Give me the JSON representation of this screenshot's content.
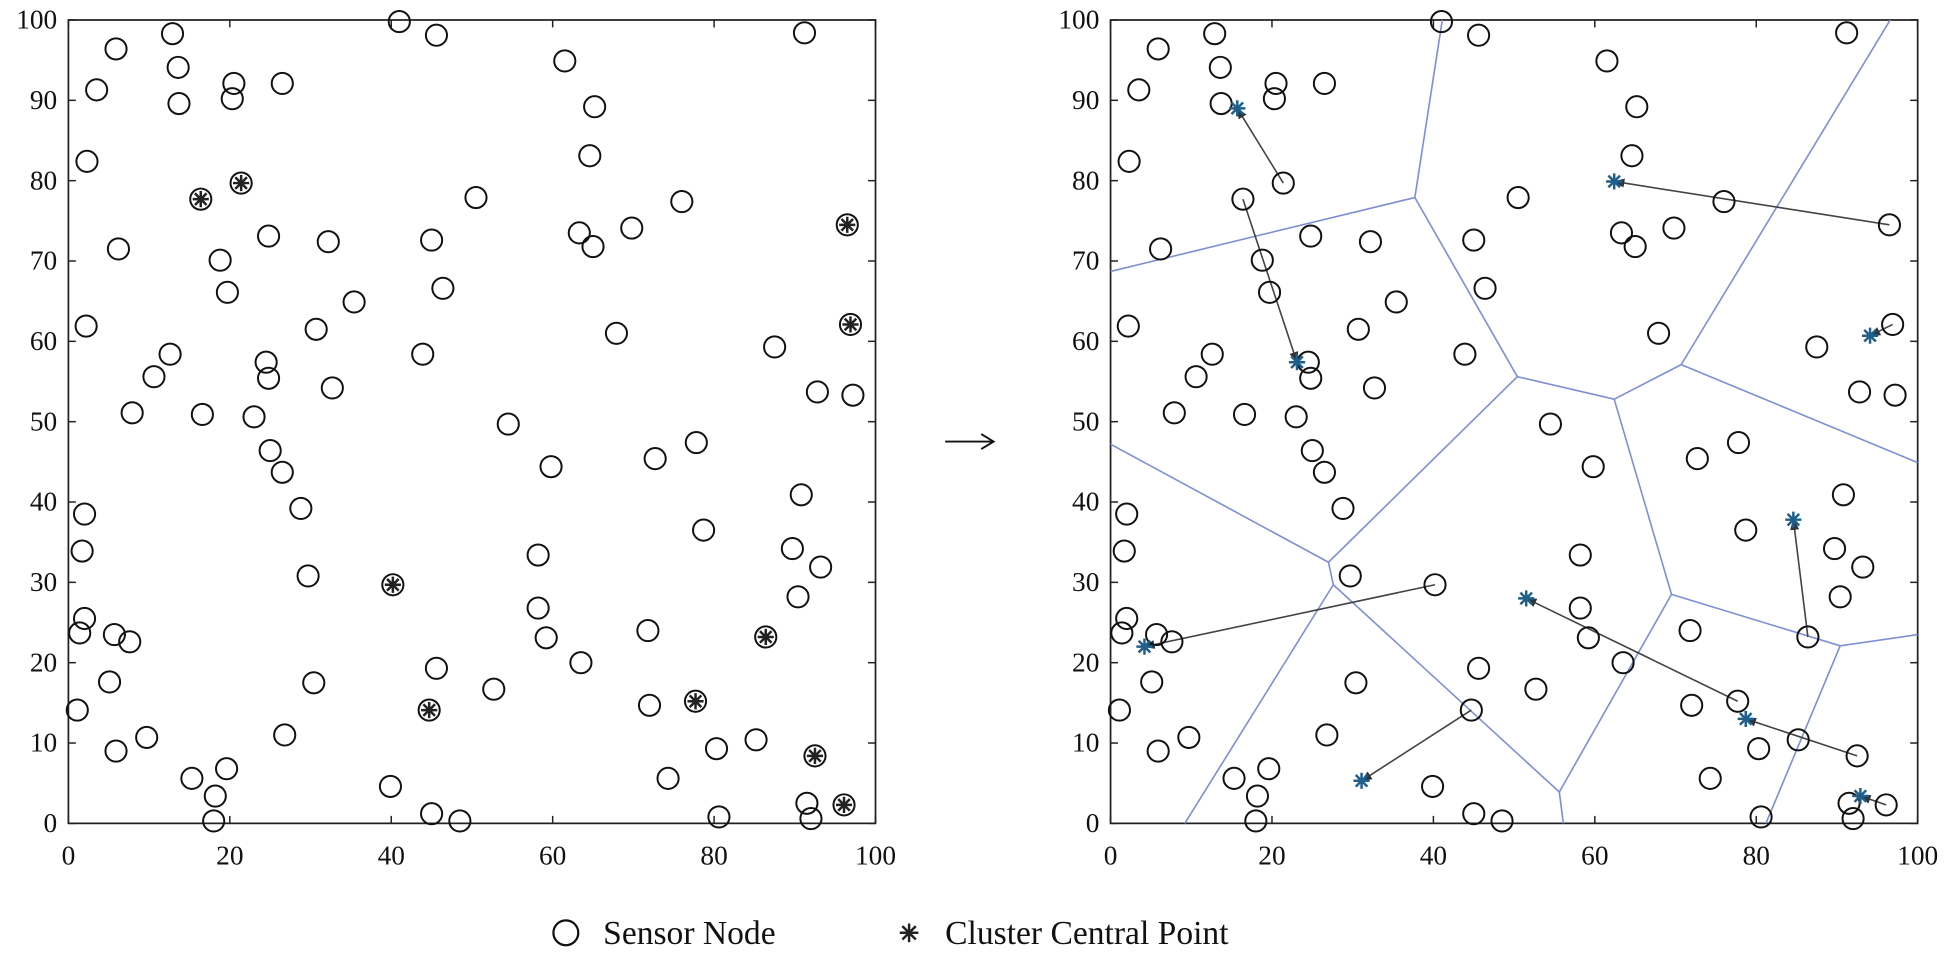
{
  "chart_data": [
    {
      "type": "scatter",
      "xlim": [
        0,
        100
      ],
      "ylim": [
        0,
        100
      ],
      "xticks": [
        0,
        20,
        40,
        60,
        80,
        100
      ],
      "yticks": [
        0,
        10,
        20,
        30,
        40,
        50,
        60,
        70,
        80,
        90,
        100
      ],
      "grid": false,
      "series": [
        {
          "name": "Sensor Node",
          "marker": "circle",
          "color": "#111111",
          "x": [
            12.9,
            41,
            45.6,
            91.2,
            5.9,
            3.5,
            13.6,
            13.7,
            20.5,
            20.3,
            26.5,
            61.5,
            65.2,
            64.6,
            2.3,
            50.5,
            76,
            63.3,
            65,
            69.8,
            24.8,
            32.2,
            45,
            6.2,
            18.8,
            19.7,
            46.4,
            35.4,
            2.2,
            30.7,
            67.9,
            12.6,
            43.9,
            87.5,
            10.6,
            24.5,
            24.8,
            32.7,
            92.8,
            97.2,
            7.9,
            16.6,
            23,
            54.5,
            25,
            26.5,
            59.8,
            72.7,
            77.8,
            28.8,
            2,
            90.8,
            78.7,
            1.7,
            89.7,
            58.2,
            93.2,
            29.7,
            2,
            58.2,
            90.4,
            1.4,
            5.7,
            7.6,
            59.2,
            71.8,
            5.1,
            30.4,
            45.6,
            52.7,
            63.5,
            1.1,
            72,
            9.7,
            26.8,
            5.9,
            80.3,
            85.2,
            74.3,
            15.3,
            19.6,
            18.2,
            18,
            39.9,
            45,
            48.5,
            80.6,
            91.5,
            92,
            16.4,
            21.4,
            96.5,
            96.9,
            40.2,
            86.4,
            77.7,
            44.7,
            92.5,
            96.1
          ],
          "values": [
            98.3,
            99.8,
            98.1,
            98.4,
            96.4,
            91.3,
            94.1,
            89.6,
            92.1,
            90.2,
            92.1,
            94.9,
            89.2,
            83.1,
            82.4,
            77.9,
            77.4,
            73.5,
            71.8,
            74.1,
            73.1,
            72.4,
            72.6,
            71.5,
            70.1,
            66.1,
            66.6,
            64.9,
            61.9,
            61.5,
            61,
            58.4,
            58.4,
            59.3,
            55.6,
            57.4,
            55.4,
            54.2,
            53.7,
            53.3,
            51.1,
            50.9,
            50.6,
            49.7,
            46.4,
            43.7,
            44.4,
            45.4,
            47.4,
            39.2,
            38.5,
            40.9,
            36.5,
            33.9,
            34.2,
            33.4,
            31.9,
            30.8,
            25.5,
            26.8,
            28.2,
            23.7,
            23.5,
            22.6,
            23.1,
            24,
            17.6,
            17.5,
            19.3,
            16.7,
            20,
            14.1,
            14.7,
            10.7,
            11,
            9,
            9.3,
            10.4,
            5.6,
            5.6,
            6.8,
            3.4,
            0.3,
            4.6,
            1.2,
            0.3,
            0.8,
            2.5,
            0.6,
            77.7,
            79.7,
            74.5,
            62.1,
            29.7,
            23.2,
            15.2,
            14.1,
            8.4,
            2.3
          ]
        },
        {
          "name": "Cluster Central Point",
          "marker": "asterisk",
          "color": "#222222",
          "x": [
            16.4,
            21.4,
            96.5,
            96.9,
            40.2,
            86.4,
            77.7,
            44.7,
            92.5,
            96.1
          ],
          "values": [
            77.7,
            79.7,
            74.5,
            62.1,
            29.7,
            23.2,
            15.2,
            14.1,
            8.4,
            2.3
          ]
        }
      ]
    },
    {
      "type": "scatter",
      "xlim": [
        0,
        100
      ],
      "ylim": [
        0,
        100
      ],
      "xticks": [
        0,
        20,
        40,
        60,
        80,
        100
      ],
      "yticks": [
        0,
        10,
        20,
        30,
        40,
        50,
        60,
        70,
        80,
        90,
        100
      ],
      "grid": false,
      "series": [
        {
          "marker": "circle",
          "color": "#111111",
          "x": [
            12.9,
            41,
            45.6,
            91.2,
            5.9,
            3.5,
            13.6,
            13.7,
            20.5,
            20.3,
            26.5,
            61.5,
            65.2,
            64.6,
            2.3,
            50.5,
            76,
            63.3,
            65,
            69.8,
            24.8,
            32.2,
            45,
            6.2,
            18.8,
            19.7,
            46.4,
            35.4,
            2.2,
            30.7,
            67.9,
            12.6,
            43.9,
            87.5,
            10.6,
            24.5,
            24.8,
            32.7,
            92.8,
            97.2,
            7.9,
            16.6,
            23,
            54.5,
            25,
            26.5,
            59.8,
            72.7,
            77.8,
            28.8,
            2,
            90.8,
            78.7,
            1.7,
            89.7,
            58.2,
            93.2,
            29.7,
            2,
            58.2,
            90.4,
            1.4,
            5.7,
            7.6,
            59.2,
            71.8,
            5.1,
            30.4,
            45.6,
            52.7,
            63.5,
            1.1,
            72,
            9.7,
            26.8,
            5.9,
            80.3,
            85.2,
            74.3,
            15.3,
            19.6,
            18.2,
            18,
            39.9,
            45,
            48.5,
            80.6,
            91.5,
            92,
            16.4,
            21.4,
            96.5,
            96.9,
            40.2,
            86.4,
            77.7,
            44.7,
            92.5,
            96.1
          ],
          "values": [
            98.3,
            99.8,
            98.1,
            98.4,
            96.4,
            91.3,
            94.1,
            89.6,
            92.1,
            90.2,
            92.1,
            94.9,
            89.2,
            83.1,
            82.4,
            77.9,
            77.4,
            73.5,
            71.8,
            74.1,
            73.1,
            72.4,
            72.6,
            71.5,
            70.1,
            66.1,
            66.6,
            64.9,
            61.9,
            61.5,
            61,
            58.4,
            58.4,
            59.3,
            55.6,
            57.4,
            55.4,
            54.2,
            53.7,
            53.3,
            51.1,
            50.9,
            50.6,
            49.7,
            46.4,
            43.7,
            44.4,
            45.4,
            47.4,
            39.2,
            38.5,
            40.9,
            36.5,
            33.9,
            34.2,
            33.4,
            31.9,
            30.8,
            25.5,
            26.8,
            28.2,
            23.7,
            23.5,
            22.6,
            23.1,
            24,
            17.6,
            17.5,
            19.3,
            16.7,
            20,
            14.1,
            14.7,
            10.7,
            11,
            9,
            9.3,
            10.4,
            5.6,
            5.6,
            6.8,
            3.4,
            0.3,
            4.6,
            1.2,
            0.3,
            0.8,
            2.5,
            0.6,
            77.7,
            79.7,
            74.5,
            62.1,
            29.7,
            23.2,
            15.2,
            14.1,
            8.4,
            2.3
          ]
        },
        {
          "marker": "asterisk",
          "color": "#1f5f8b",
          "x": [
            23.1,
            15.7,
            62.4,
            94.1,
            4.2,
            84.6,
            51.5,
            31.1,
            78.7,
            92.9
          ],
          "values": [
            57.4,
            89,
            79.9,
            60.7,
            22,
            37.8,
            28,
            5.3,
            13,
            3.4
          ]
        }
      ],
      "arrows": [
        [
          16.4,
          77.7,
          23.1,
          57.4
        ],
        [
          21.4,
          79.7,
          15.7,
          89
        ],
        [
          96.5,
          74.5,
          62.4,
          79.9
        ],
        [
          96.9,
          62.1,
          94.1,
          60.7
        ],
        [
          40.2,
          29.7,
          4.2,
          22
        ],
        [
          86.4,
          23.2,
          84.6,
          37.8
        ],
        [
          77.7,
          15.2,
          51.5,
          28
        ],
        [
          44.7,
          14.1,
          31.1,
          5.3
        ],
        [
          92.5,
          8.4,
          78.7,
          13
        ],
        [
          96.1,
          2.3,
          92.9,
          3.4
        ]
      ],
      "arrow_color": "#444444",
      "edges": [
        [
          0,
          68.7,
          37.7,
          77.9
        ],
        [
          37.7,
          77.9,
          41.1,
          100
        ],
        [
          37.7,
          77.9,
          50.4,
          55.6
        ],
        [
          50.4,
          55.6,
          62.4,
          52.8
        ],
        [
          62.4,
          52.8,
          70.7,
          57.1
        ],
        [
          70.7,
          57.1,
          96.6,
          100
        ],
        [
          70.7,
          57.1,
          100,
          44.9
        ],
        [
          62.4,
          52.8,
          69.5,
          28.5
        ],
        [
          69.5,
          28.5,
          90.4,
          22.1
        ],
        [
          90.4,
          22.1,
          100,
          23.5
        ],
        [
          90.4,
          22.1,
          81.2,
          0
        ],
        [
          69.5,
          28.5,
          55.6,
          3.9
        ],
        [
          55.6,
          3.9,
          56.1,
          0
        ],
        [
          50.4,
          55.6,
          27,
          32.5
        ],
        [
          0,
          47.2,
          27,
          32.5
        ],
        [
          27,
          32.5,
          27.6,
          29.7
        ],
        [
          27.6,
          29.7,
          9.2,
          0
        ],
        [
          27.6,
          29.7,
          55.6,
          3.9
        ]
      ],
      "edge_color": "#7f8fd4"
    }
  ]
}
